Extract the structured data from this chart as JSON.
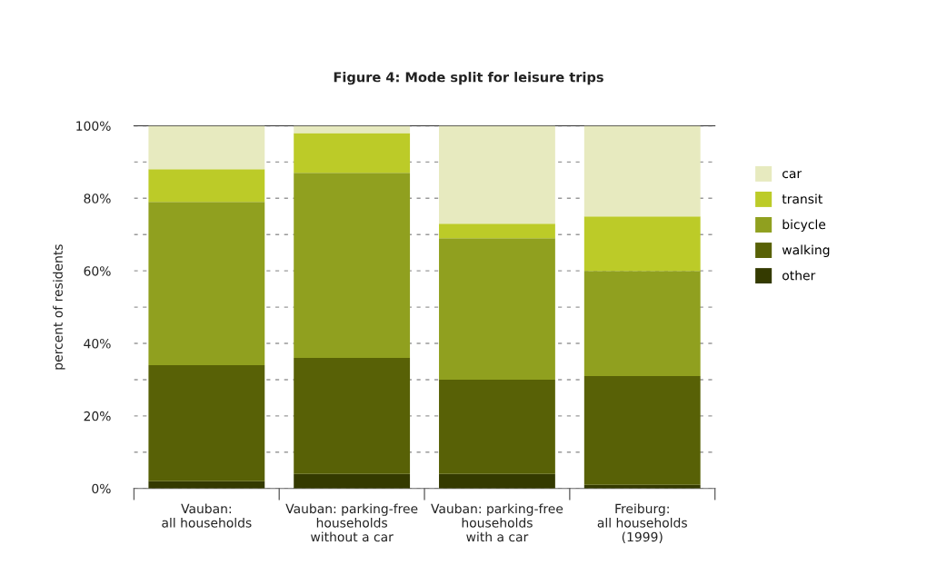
{
  "chart_data": {
    "type": "bar",
    "title": "Figure 4: Mode split for leisure trips",
    "ylabel": "percent of residents",
    "categories": [
      "Vauban:\nall households",
      "Vauban: parking-free\nhouseholds\nwithout a car",
      "Vauban: parking-free\nhouseholds\nwith a car",
      "Freiburg:\nall households\n(1999)"
    ],
    "stacked": true,
    "series": [
      {
        "name": "other",
        "color": "#343a00",
        "values": [
          2,
          4,
          4,
          1
        ]
      },
      {
        "name": "walking",
        "color": "#586106",
        "values": [
          32,
          32,
          26,
          30
        ]
      },
      {
        "name": "bicycle",
        "color": "#90a01f",
        "values": [
          45,
          51,
          39,
          29
        ]
      },
      {
        "name": "transit",
        "color": "#bccb28",
        "values": [
          9,
          11,
          4,
          15
        ]
      },
      {
        "name": "car",
        "color": "#e7eabf",
        "values": [
          12,
          2,
          27,
          25
        ]
      }
    ],
    "ylim": [
      0,
      100
    ],
    "yticks": [
      {
        "value": 0,
        "label": "0%"
      },
      {
        "value": 10,
        "label": null
      },
      {
        "value": 20,
        "label": "20%"
      },
      {
        "value": 30,
        "label": null
      },
      {
        "value": 40,
        "label": "40%"
      },
      {
        "value": 50,
        "label": null
      },
      {
        "value": 60,
        "label": "60%"
      },
      {
        "value": 70,
        "label": null
      },
      {
        "value": 80,
        "label": "80%"
      },
      {
        "value": 90,
        "label": null
      },
      {
        "value": 100,
        "label": "100%"
      }
    ],
    "grid": "y",
    "legend": "right"
  }
}
